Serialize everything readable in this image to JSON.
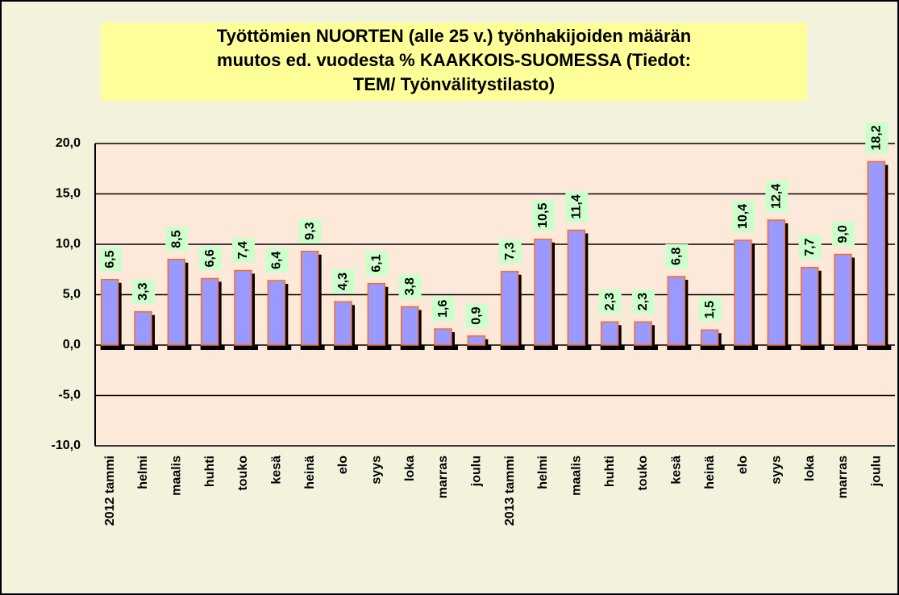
{
  "chart_data": {
    "type": "bar",
    "title": [
      "Työttömien NUORTEN (alle 25 v.) työnhakijoiden määrän",
      "muutos ed. vuodesta %  KAAKKOIS-SUOMESSA (Tiedot:",
      "TEM/ Työnvälitystilasto)"
    ],
    "categories": [
      "2012 tammi",
      "helmi",
      "maalis",
      "huhti",
      "touko",
      "kesä",
      "heinä",
      "elo",
      "syys",
      "loka",
      "marras",
      "joulu",
      "2013 tammi",
      "helmi",
      "maalis",
      "huhti",
      "touko",
      "kesä",
      "heinä",
      "elo",
      "syys",
      "loka",
      "marras",
      "joulu"
    ],
    "values": [
      6.5,
      3.3,
      8.5,
      6.6,
      7.4,
      6.4,
      9.3,
      4.3,
      6.1,
      3.8,
      1.6,
      0.9,
      7.3,
      10.5,
      11.4,
      2.3,
      2.3,
      6.8,
      1.5,
      10.4,
      12.4,
      7.7,
      9.0,
      18.2
    ],
    "value_labels": [
      "6,5",
      "3,3",
      "8,5",
      "6,6",
      "7,4",
      "6,4",
      "9,3",
      "4,3",
      "6,1",
      "3,8",
      "1,6",
      "0,9",
      "7,3",
      "10,5",
      "11,4",
      "2,3",
      "2,3",
      "6,8",
      "1,5",
      "10,4",
      "12,4",
      "7,7",
      "9,0",
      "18,2"
    ],
    "color": "#9999ff",
    "ylim": [
      -10,
      20
    ],
    "yticks": [
      {
        "value": -10,
        "label": "-10,0"
      },
      {
        "value": -5,
        "label": "-5,0"
      },
      {
        "value": 0,
        "label": "0,0"
      },
      {
        "value": 5,
        "label": "5,0"
      },
      {
        "value": 10,
        "label": "10,0"
      },
      {
        "value": 15,
        "label": "15,0"
      },
      {
        "value": 20,
        "label": "20,0"
      }
    ],
    "grid": true
  }
}
